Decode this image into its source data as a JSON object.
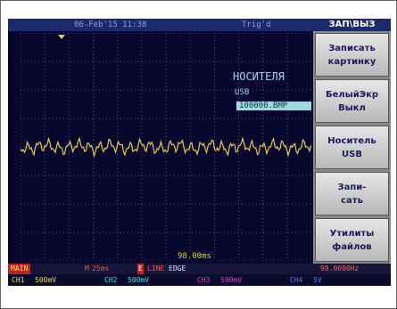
{
  "status_bar": {
    "datetime": "06-Feb'15 11:38",
    "trigger": "Trig'd"
  },
  "menu": {
    "title": "ЗАП\\ВЫЗ",
    "buttons": [
      {
        "lines": [
          "Записать",
          "картинку"
        ]
      },
      {
        "lines": [
          "БелыйЭкр",
          "Выкл"
        ]
      },
      {
        "lines": [
          "Носитель",
          "USB"
        ]
      },
      {
        "lines": [
          "Запи-",
          "сать"
        ]
      },
      {
        "lines": [
          "Утилиты",
          "файлов"
        ]
      }
    ]
  },
  "screen": {
    "storage_title": "НОСИТЕЛЯ",
    "storage_device": "USB",
    "file_name": "100000.BMP",
    "time_marker": "98.00ms"
  },
  "bottom_bar": {
    "mode": "MAIN",
    "timebase_label": "M",
    "timebase": "25ms",
    "trigger_label": "E",
    "trigger_source": "LINE",
    "trigger_type": "EDGE",
    "frequency": "98.0000Hz",
    "channels": [
      {
        "name": "CH1",
        "scale": "500mV"
      },
      {
        "name": "CH2",
        "scale": "500mV"
      },
      {
        "name": "CH3",
        "scale": "500mV"
      },
      {
        "name": "CH4",
        "scale": "5V"
      }
    ]
  }
}
